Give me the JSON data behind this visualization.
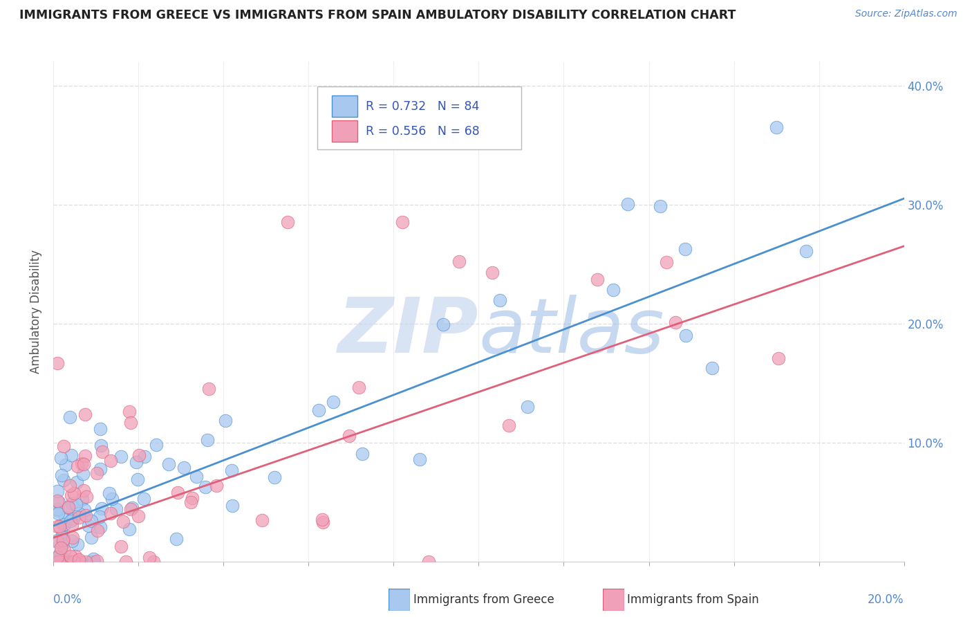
{
  "title": "IMMIGRANTS FROM GREECE VS IMMIGRANTS FROM SPAIN AMBULATORY DISABILITY CORRELATION CHART",
  "source": "Source: ZipAtlas.com",
  "ylabel": "Ambulatory Disability",
  "xlim": [
    0,
    0.2
  ],
  "ylim": [
    0,
    0.42
  ],
  "R_greece": 0.732,
  "N_greece": 84,
  "R_spain": 0.556,
  "N_spain": 68,
  "color_greece": "#a8c8f0",
  "color_spain": "#f0a0b8",
  "color_greece_line": "#4a90d0",
  "color_spain_line": "#e0607a",
  "legend_text_color": "#3355bb",
  "watermark_color": "#c5d8f0",
  "background_color": "#ffffff",
  "grid_color": "#e0e0e0",
  "title_color": "#222222",
  "source_color": "#5588cc",
  "axis_label_color": "#5588cc",
  "ylabel_color": "#555555",
  "greece_line_y0": 0.03,
  "greece_line_y1": 0.305,
  "spain_line_y0": 0.02,
  "spain_line_y1": 0.265
}
